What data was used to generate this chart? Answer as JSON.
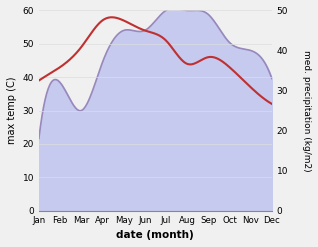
{
  "months": [
    "Jan",
    "Feb",
    "Mar",
    "Apr",
    "May",
    "Jun",
    "Jul",
    "Aug",
    "Sep",
    "Oct",
    "Nov",
    "Dec"
  ],
  "temp": [
    39,
    43,
    49,
    57,
    57,
    54,
    51,
    44,
    46,
    43,
    37,
    32
  ],
  "precip": [
    18,
    32,
    25,
    37,
    45,
    45,
    50,
    50,
    49,
    42,
    40,
    33
  ],
  "temp_color": "#c03030",
  "precip_line_color": "#9988bb",
  "precip_fill_color": "#c5caee",
  "ylabel_left": "max temp (C)",
  "ylabel_right": "med. precipitation (kg/m2)",
  "xlabel": "date (month)",
  "ylim_left": [
    0,
    60
  ],
  "ylim_right": [
    0,
    50
  ],
  "yticks_left": [
    0,
    10,
    20,
    30,
    40,
    50,
    60
  ],
  "yticks_right": [
    0,
    10,
    20,
    30,
    40,
    50
  ],
  "bg_color": "#f0f0f0",
  "grid_color": "#dddddd"
}
